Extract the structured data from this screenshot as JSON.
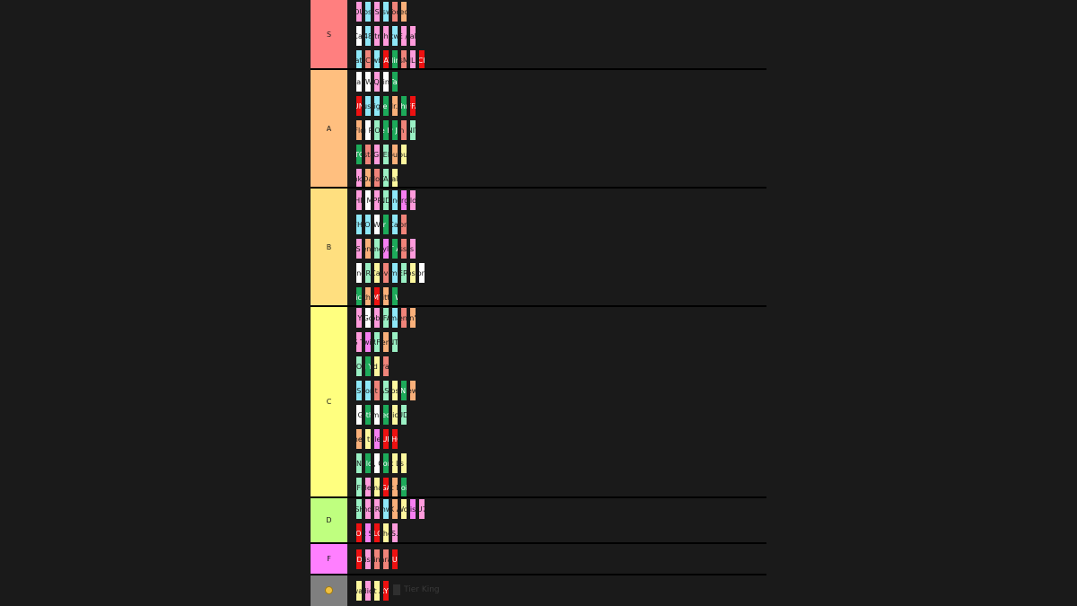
{
  "watermark": "Tier King",
  "palette": {
    "S": "#ff7f7f",
    "A": "#ffbf7f",
    "B": "#ffdf7f",
    "C": "#ffff7f",
    "D": "#bfff7f",
    "F": "#ff7fff",
    "misc": "#7f7f7f",
    "white": "#ffffff",
    "pink": "#ff9bdc",
    "cyan": "#8ee8f8",
    "salmon": "#f0847a",
    "orange": "#f9b07a",
    "mint": "#9af0c4",
    "green": "#1daa5a",
    "red": "#ee1111",
    "yellow": "#fdf79e",
    "magenta": "#f67ff2"
  },
  "tiers": [
    {
      "label": "S",
      "colorKey": "S",
      "rows": [
        [
          [
            "RUNNING OUT OF TIME",
            "pink"
          ],
          [
            "Colossus",
            "cyan"
          ],
          [
            "A BOY IS A GUN",
            "pink"
          ],
          [
            "Answer",
            "cyan"
          ],
          [
            "Odd Toddlers",
            "salmon"
          ],
          [
            "Boredom",
            "orange"
          ]
        ],
        [
          [
            "I'll Take Care of You",
            "white"
          ],
          [
            "48",
            "cyan"
          ],
          [
            "Nightmare",
            "pink"
          ],
          [
            "She",
            "pink"
          ],
          [
            "Awkward",
            "cyan"
          ],
          [
            "GONE, GONE / THANK YOU",
            "pink"
          ],
          [
            "Analog",
            "pink"
          ]
        ],
        [
          [
            "Slater",
            "cyan"
          ],
          [
            "VCR",
            "salmon"
          ],
          [
            "Cowboy",
            "cyan"
          ],
          [
            "2SEATER",
            "red"
          ],
          [
            "Darling, I",
            "green"
          ],
          [
            "AssMilk",
            "salmon"
          ],
          [
            "ARE WE STILL FRIENDS?",
            "pink"
          ],
          [
            "SMUCKERS",
            "red"
          ]
        ]
      ]
    },
    {
      "label": "A",
      "colorKey": "A",
      "rows": [
        [
          [
            "Sucka Free",
            "white"
          ],
          [
            "Don't You Worry Baby",
            "white"
          ],
          [
            "EARFQUAKE",
            "pink"
          ],
          [
            "Ring Ring Ring",
            "white"
          ],
          [
            "Rah Tah Tah",
            "green"
          ]
        ],
        [
          [
            "FUCKING YOUNG / PERFECT",
            "red"
          ],
          [
            "Rusty",
            "cyan"
          ],
          [
            "Pigs",
            "cyan"
          ],
          [
            "Judge Judy",
            "green"
          ],
          [
            "911 / Mr. Lonely",
            "orange"
          ],
          [
            "St. Chroma",
            "green"
          ],
          [
            "BUFFALO",
            "red"
          ]
        ],
        [
          [
            "Where This Flower Blooms",
            "orange"
          ],
          [
            "Big Poe",
            "white"
          ],
          [
            "SORRY NOT SORRY",
            "mint"
          ],
          [
            "Like Him",
            "green"
          ],
          [
            "Hey Jane",
            "green"
          ],
          [
            "Tron Cat",
            "salmon"
          ],
          [
            "RUNITUP",
            "mint"
          ]
        ],
        [
          [
            "DOGTOOTH",
            "green"
          ],
          [
            "Bastard",
            "salmon"
          ],
          [
            "NEW MAGIC WAND",
            "pink"
          ],
          [
            "LUMBERJACK",
            "mint"
          ],
          [
            "See You Again",
            "orange"
          ],
          [
            "Fuck you bunch",
            "yellow"
          ]
        ],
        [
          [
            "Yonkers",
            "pink"
          ],
          [
            "Who Dat Boy",
            "orange"
          ],
          [
            "Blow",
            "salmon"
          ],
          [
            "WUSYANAME",
            "mint"
          ],
          [
            "Pale",
            "yellow"
          ]
        ]
      ]
    },
    {
      "label": "B",
      "colorKey": "B",
      "rows": [
        [
          [
            "I THINK",
            "pink"
          ],
          [
            "Sugar On My Tongue",
            "white"
          ],
          [
            "PUPPET",
            "pink"
          ],
          [
            "HOT WIND BLOWS",
            "mint"
          ],
          [
            "Parking Lot",
            "cyan"
          ],
          [
            "Burger",
            "magenta"
          ],
          [
            "Golden",
            "pink"
          ]
        ],
        [
          [
            "IFHY",
            "cyan"
          ],
          [
            "WOLF",
            "cyan"
          ],
          [
            "Tell Me What It Is",
            "white"
          ],
          [
            "Take Your Mask Off",
            "green"
          ],
          [
            "PartyIsntOver/Campfire/Bimmer",
            "cyan"
          ],
          [
            "Inglorious",
            "salmon"
          ]
        ],
        [
          [
            "WHAT'S GOOD",
            "pink"
          ],
          [
            "Garden Shed",
            "orange"
          ],
          [
            "Domo23",
            "mint"
          ],
          [
            "Transylvania",
            "magenta"
          ],
          [
            "WHAT A DAY",
            "green"
          ],
          [
            "Session",
            "salmon"
          ],
          [
            "Pigs Fly",
            "pink"
          ]
        ],
        [
          [
            "Stop Playing With Me",
            "white"
          ],
          [
            "CORSO",
            "mint"
          ],
          [
            "Car",
            "yellow"
          ],
          [
            "Seven",
            "salmon"
          ],
          [
            "Jamba",
            "cyan"
          ],
          [
            "JUGGERNAUT",
            "mint"
          ],
          [
            "The Nosebleed",
            "yellow"
          ],
          [
            "Lone",
            "white"
          ]
        ],
        [
          [
            "Sticky",
            "green"
          ],
          [
            "Pothole",
            "orange"
          ],
          [
            "BLOW MY LOAD",
            "red"
          ],
          [
            "Glitter",
            "orange"
          ],
          [
            "Thought I Was Dead",
            "green"
          ]
        ]
      ]
    },
    {
      "label": "C",
      "colorKey": "C",
      "rows": [
        [
          [
            "I DON'T LOVE YOU ANYMORE",
            "pink"
          ],
          [
            "I Ain't Got Time",
            "white"
          ],
          [
            "Goblin",
            "pink"
          ],
          [
            "SAFARI",
            "mint"
          ],
          [
            "Tamale",
            "cyan"
          ],
          [
            "French",
            "salmon"
          ],
          [
            "Droppin' Seeds",
            "orange"
          ]
        ],
        [
          [
            "IGOR'S THEME",
            "pink"
          ],
          [
            "Sandwitches",
            "magenta"
          ],
          [
            "WHARF TALK",
            "mint"
          ],
          [
            "November",
            "orange"
          ],
          [
            "STUNTMAN",
            "mint"
          ]
        ],
        [
          [
            "SWEET / I THOUGHT YOU WANTED TO DANCE",
            "mint"
          ],
          [
            "I Hope You Find Your Way Home",
            "green"
          ],
          [
            "friend zone",
            "yellow"
          ],
          [
            "Parade",
            "salmon"
          ]
        ],
        [
          [
            "RISE!",
            "cyan"
          ],
          [
            "Treehome95",
            "cyan"
          ],
          [
            "Slow It Down",
            "salmon"
          ],
          [
            "MASSA",
            "mint"
          ],
          [
            "Dinosaur",
            "yellow"
          ],
          [
            "HEAVEN TO ME",
            "green"
          ],
          [
            "Foreward",
            "orange"
          ]
        ],
        [
          [
            "Don't Tap That Glass / Tweakin'",
            "white"
          ],
          [
            "Mother",
            "green"
          ],
          [
            "Mommanem",
            "white"
          ],
          [
            "I Killed You",
            "green"
          ],
          [
            "Plastic Cup",
            "yellow"
          ],
          [
            "SIR BAUDELAIRE",
            "mint"
          ]
        ],
        [
          [
            "Jack and the Beanstalk",
            "orange"
          ],
          [
            "Suicidal thoughts",
            "yellow"
          ],
          [
            "Untitled 63",
            "magenta"
          ],
          [
            "FIND YOUR WINGS",
            "red"
          ],
          [
            "DEATHCAMP",
            "red"
          ]
        ],
        [
          [
            "LEMONHEAD",
            "mint"
          ],
          [
            "Balloon",
            "green"
          ],
          [
            "BOYFRIEND, GIRLFRIEND",
            "white"
          ],
          [
            "Tomorrow",
            "green"
          ],
          [
            "Fuck Love",
            "yellow"
          ],
          [
            "fuck this election",
            "yellow"
          ]
        ],
        [
          [
            "MANIFESTO",
            "mint"
          ],
          [
            "Her",
            "pink"
          ],
          [
            "Yamaka",
            "yellow"
          ],
          [
            "OKAGA, CA",
            "red"
          ],
          [
            "Enjoy Right Now, Today",
            "orange"
          ],
          [
            "Noid",
            "green"
          ]
        ]
      ]
    },
    {
      "label": "D",
      "colorKey": "D",
      "rows": [
        [
          [
            "WILSHIRE",
            "mint"
          ],
          [
            "Window",
            "pink"
          ],
          [
            "BOYFRIEND",
            "pink"
          ],
          [
            "Trashwang",
            "cyan"
          ],
          [
            "Dazed X Amazed",
            "orange"
          ],
          [
            "Wor",
            "yellow"
          ],
          [
            "Prism",
            "magenta"
          ],
          [
            "AU79",
            "pink"
          ]
        ],
        [
          [
            "THE BROWN STAINS OF DARKEESE LATIFAH",
            "red"
          ],
          [
            "Steak Sauce",
            "magenta"
          ],
          [
            "PILOT",
            "red"
          ],
          [
            "Of Theme",
            "yellow"
          ],
          [
            "B.S.D.",
            "pink"
          ]
        ]
      ]
    },
    {
      "label": "F",
      "colorKey": "F",
      "rows": [
        [
          [
            "KEEP DA O'S",
            "red"
          ],
          [
            "Fish",
            "pink"
          ],
          [
            "Tina",
            "salmon"
          ],
          [
            "Sarah",
            "salmon"
          ],
          [
            "RUN",
            "red"
          ]
        ]
      ]
    },
    {
      "label": "",
      "colorKey": "misc",
      "icon": "grinning-emoji-icon",
      "rows": [
        [
          [
            "Swag!",
            "yellow"
          ],
          [
            "Radicals",
            "pink"
          ],
          [
            "Furb Set Anthem",
            "yellow"
          ],
          [
            "CHERRY BOMB",
            "red"
          ]
        ]
      ]
    }
  ]
}
